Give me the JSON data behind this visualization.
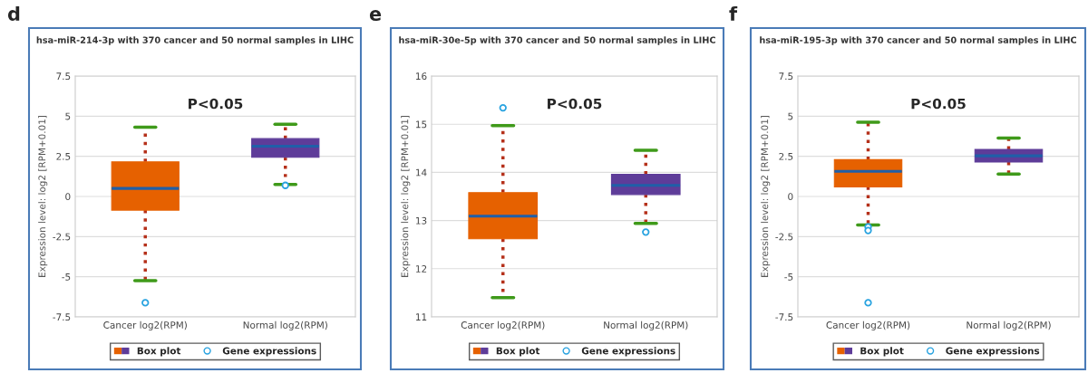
{
  "chart_data": [
    {
      "type": "box",
      "title": "hsa-miR-214-3p with 370 cancer and 50 normal samples in LIHC",
      "ylabel": "Expression level: log2 [RPM+0.01]",
      "categories": [
        "Cancer log2(RPM)",
        "Normal log2(RPM)"
      ],
      "ylim": [
        -7.5,
        7.5
      ],
      "yticks": [
        -7.5,
        -5,
        -2.5,
        0,
        2.5,
        5,
        7.5
      ],
      "grid": "y",
      "legend": "bottom",
      "line_style": "dotted",
      "annotations": [
        "d",
        "P<0.05"
      ],
      "series": [
        {
          "name": "Box plot",
          "colors": [
            "#e66100",
            "#5e3c99"
          ],
          "boxes": [
            {
              "low": -5.25,
              "q1": -0.85,
              "median": 0.5,
              "q3": 2.16,
              "high": 4.31
            },
            {
              "low": 0.75,
              "q1": 2.44,
              "median": 3.13,
              "q3": 3.6,
              "high": 4.5
            }
          ]
        },
        {
          "name": "Gene expressions",
          "type": "scatter",
          "color": "#29a3e0",
          "marker": "circle",
          "x": [
            "Cancer log2(RPM)",
            "Normal log2(RPM)"
          ],
          "values": [
            -6.62,
            0.69
          ]
        }
      ]
    },
    {
      "type": "box",
      "title": "hsa-miR-30e-5p with 370 cancer and 50 normal samples in LIHC",
      "ylabel": "Expression level: log2 [RPM+0.01]",
      "categories": [
        "Cancer log2(RPM)",
        "Normal log2(RPM)"
      ],
      "ylim": [
        11,
        16
      ],
      "yticks": [
        11,
        12,
        13,
        14,
        15,
        16
      ],
      "grid": "y",
      "legend": "bottom",
      "line_style": "dotted",
      "annotations": [
        "e",
        "P<0.05"
      ],
      "series": [
        {
          "name": "Box plot",
          "colors": [
            "#e66100",
            "#5e3c99"
          ],
          "boxes": [
            {
              "low": 11.4,
              "q1": 12.62,
              "median": 13.09,
              "q3": 13.58,
              "high": 14.97
            },
            {
              "low": 12.94,
              "q1": 13.54,
              "median": 13.73,
              "q3": 13.96,
              "high": 14.46
            }
          ]
        },
        {
          "name": "Gene expressions",
          "type": "scatter",
          "color": "#29a3e0",
          "marker": "circle",
          "x": [
            "Cancer log2(RPM)",
            "Normal log2(RPM)"
          ],
          "values": [
            15.34,
            12.76
          ]
        }
      ]
    },
    {
      "type": "box",
      "title": "hsa-miR-195-3p with 370 cancer and 50 normal samples in LIHC",
      "ylabel": "Expression level: log2 [RPM+0.01]",
      "categories": [
        "Cancer log2(RPM)",
        "Normal log2(RPM)"
      ],
      "ylim": [
        -7.5,
        7.5
      ],
      "yticks": [
        -7.5,
        -5,
        -2.5,
        0,
        2.5,
        5,
        7.5
      ],
      "grid": "y",
      "legend": "bottom",
      "line_style": "dotted",
      "annotations": [
        "f",
        "P<0.05"
      ],
      "series": [
        {
          "name": "Box plot",
          "colors": [
            "#e66100",
            "#5e3c99"
          ],
          "boxes": [
            {
              "low": -1.78,
              "q1": 0.6,
              "median": 1.56,
              "q3": 2.29,
              "high": 4.62
            },
            {
              "low": 1.39,
              "q1": 2.14,
              "median": 2.53,
              "q3": 2.93,
              "high": 3.64
            }
          ]
        },
        {
          "name": "Gene expressions",
          "type": "scatter",
          "color": "#29a3e0",
          "marker": "circle",
          "x": [
            "Cancer log2(RPM)",
            "Cancer log2(RPM)",
            "Cancer log2(RPM)"
          ],
          "values": [
            -1.9,
            -2.12,
            -6.62
          ]
        }
      ]
    }
  ]
}
